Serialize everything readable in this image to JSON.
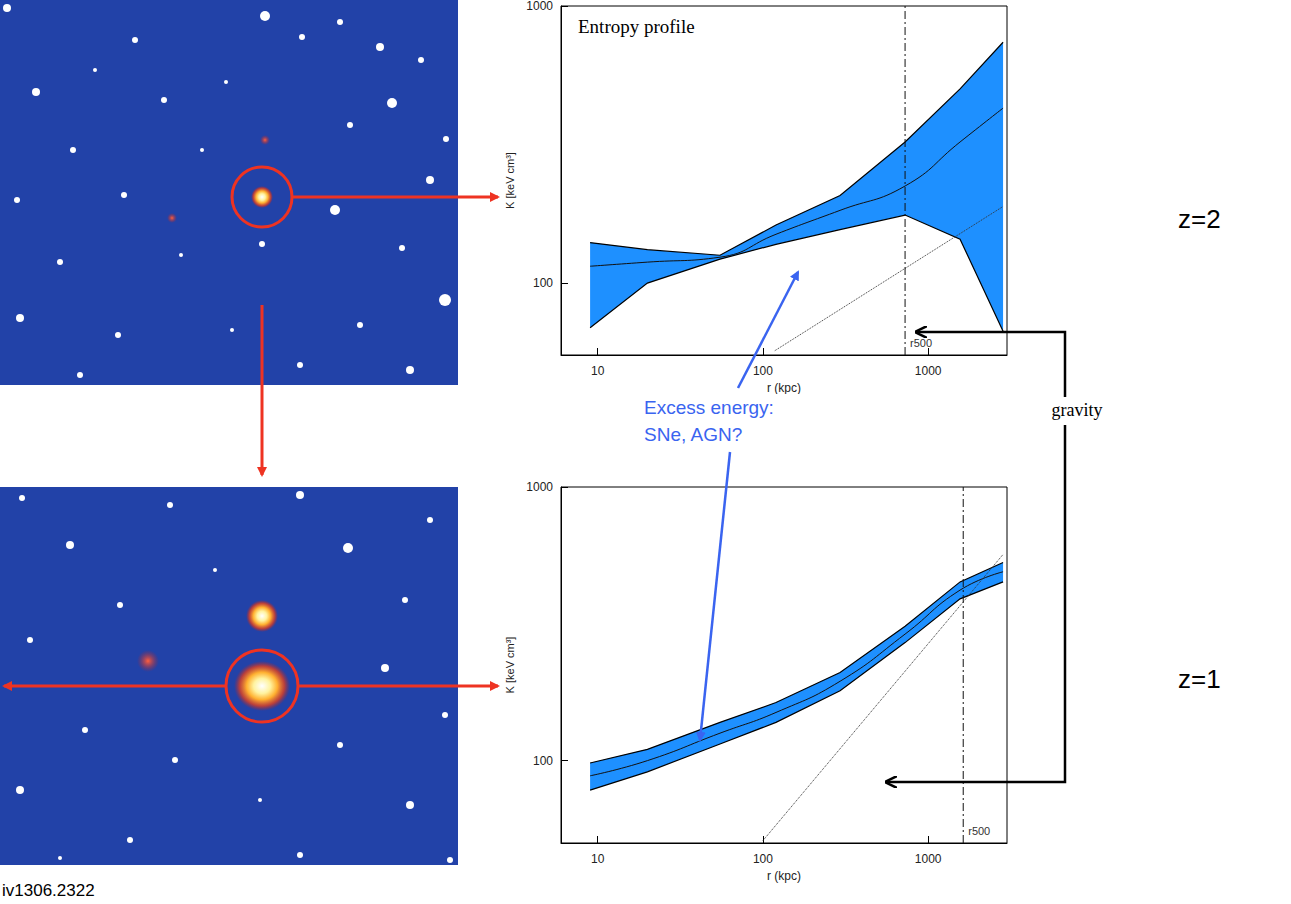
{
  "chart_data": [
    {
      "type": "line",
      "title": "Entropy profile",
      "xlabel": "r (kpc)",
      "ylabel": "K [keV cm³]",
      "log": true,
      "xlim": [
        6,
        3000
      ],
      "xticks": [
        10,
        100,
        1000
      ],
      "ylim": [
        55,
        1000
      ],
      "yticks": [
        100,
        1000
      ],
      "x": [
        9,
        20,
        55,
        120,
        293,
        725,
        1560,
        2840
      ],
      "values": [
        115,
        119,
        124,
        150,
        183,
        224,
        323,
        428
      ],
      "band": {
        "upper": [
          140,
          132,
          126,
          162,
          207,
          323,
          502,
          740
        ],
        "lower": [
          69,
          100,
          122,
          138,
          156,
          176,
          144,
          67
        ]
      },
      "color": "#1e90ff",
      "baseline": {
        "x": [
          118,
          2840
        ],
        "values": [
          57,
          189
        ],
        "line_style": "dotted"
      },
      "r500": {
        "value": 725,
        "label": "r500",
        "line_style": "dashdot"
      },
      "redshift": "z=2"
    },
    {
      "type": "line",
      "xlabel": "r (kpc)",
      "ylabel": "K [keV cm³]",
      "log": true,
      "xlim": [
        6,
        3000
      ],
      "xticks": [
        10,
        100,
        1000
      ],
      "ylim": [
        50,
        1000
      ],
      "yticks": [
        100,
        1000
      ],
      "x": [
        9,
        20,
        55,
        120,
        293,
        725,
        1560,
        2840
      ],
      "values": [
        88,
        100,
        126,
        150,
        195,
        290,
        420,
        490
      ],
      "band": {
        "upper": [
          98,
          110,
          138,
          163,
          210,
          310,
          450,
          530
        ],
        "lower": [
          78,
          91,
          115,
          138,
          180,
          270,
          390,
          450
        ]
      },
      "color": "#1e90ff",
      "baseline": {
        "x": [
          100,
          2840
        ],
        "values": [
          51,
          567
        ],
        "line_style": "dotted"
      },
      "r500": {
        "value": 1630,
        "label": "r500",
        "line_style": "dashdot"
      },
      "redshift": "z=1"
    }
  ],
  "annotations": {
    "gravity": "gravity",
    "excess_energy": [
      "Excess energy:",
      "SNe, AGN?"
    ],
    "reference": "iv1306.2322"
  }
}
